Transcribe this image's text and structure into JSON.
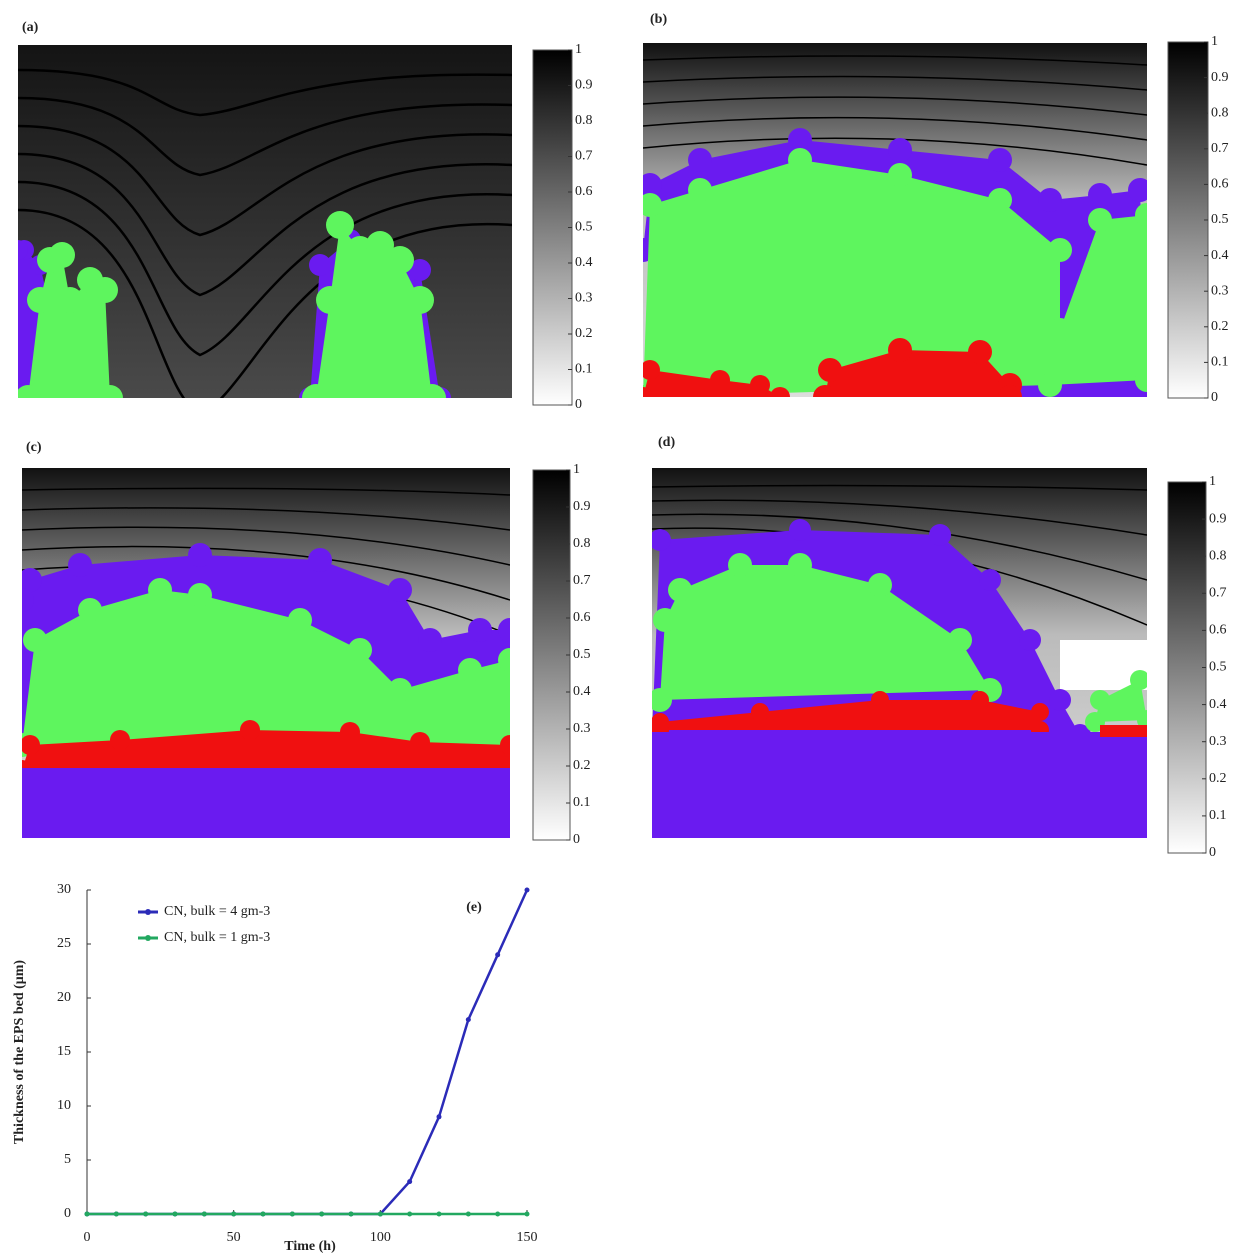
{
  "panels": [
    {
      "label": "(a)",
      "colorbar": {
        "lim": [
          0,
          1
        ],
        "ticks": [
          0,
          0.1,
          0.2,
          0.3,
          0.4,
          0.5,
          0.6,
          0.7,
          0.8,
          0.9,
          1
        ]
      }
    },
    {
      "label": "(b)",
      "colorbar": {
        "lim": [
          0,
          1
        ],
        "ticks": [
          0,
          0.1,
          0.2,
          0.3,
          0.4,
          0.5,
          0.6,
          0.7,
          0.8,
          0.9,
          1
        ]
      }
    },
    {
      "label": "(c)",
      "colorbar": {
        "lim": [
          0,
          1
        ],
        "ticks": [
          0,
          0.1,
          0.2,
          0.3,
          0.4,
          0.5,
          0.6,
          0.7,
          0.8,
          0.9,
          1
        ]
      }
    },
    {
      "label": "(d)",
      "colorbar": {
        "lim": [
          0,
          1
        ],
        "ticks": [
          0,
          0.1,
          0.2,
          0.3,
          0.4,
          0.5,
          0.6,
          0.7,
          0.8,
          0.9,
          1
        ]
      }
    }
  ],
  "chart_data": {
    "type": "line",
    "annotation": "(e)",
    "x_label": "Time (h)",
    "y_label": "Thickness of the EPS bed (μm)",
    "x": [
      0,
      10,
      20,
      30,
      40,
      50,
      60,
      70,
      80,
      90,
      100,
      110,
      120,
      130,
      140,
      150
    ],
    "series": [
      {
        "name": "CN, bulk = 4 gm-3",
        "color": "#2b2bb8",
        "values": [
          0,
          0,
          0,
          0,
          0,
          0,
          0,
          0,
          0,
          0,
          0,
          3,
          9,
          18,
          24,
          30
        ]
      },
      {
        "name": "CN, bulk = 1 gm-3",
        "color": "#22a860",
        "values": [
          0,
          0,
          0,
          0,
          0,
          0,
          0,
          0,
          0,
          0,
          0,
          0,
          0,
          0,
          0,
          0
        ]
      }
    ],
    "xlim": [
      0,
      150
    ],
    "xticks": [
      0,
      50,
      100,
      150
    ],
    "ylim": [
      0,
      30
    ],
    "yticks": [
      0,
      5,
      10,
      15,
      20,
      25,
      30
    ]
  }
}
